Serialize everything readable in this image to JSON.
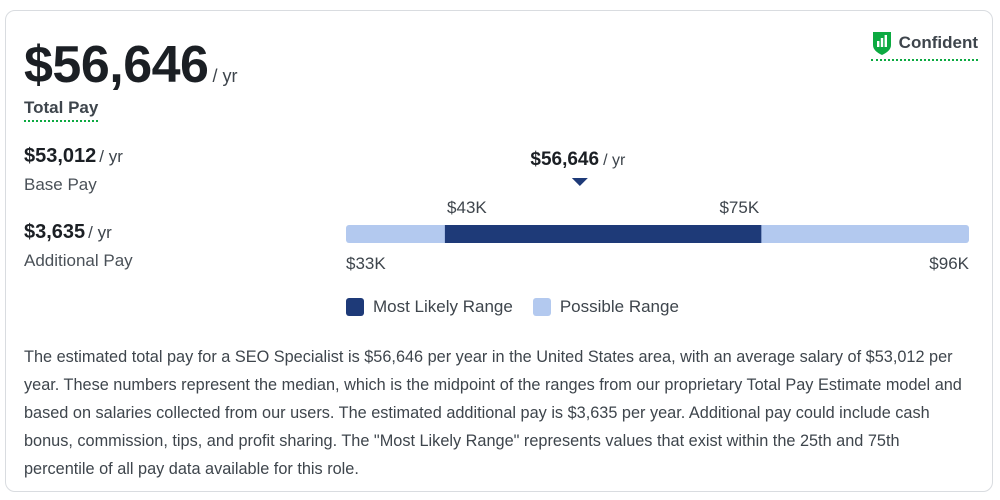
{
  "summary": {
    "total_pay": "$56,646",
    "total_unit": "/ yr",
    "total_label": "Total Pay",
    "confidence_label": "Confident"
  },
  "breakdown": [
    {
      "amount": "$53,012",
      "unit": "/ yr",
      "label": "Base Pay"
    },
    {
      "amount": "$3,635",
      "unit": "/ yr",
      "label": "Additional Pay"
    }
  ],
  "chart_data": {
    "type": "range",
    "marker": {
      "value": 56646,
      "label": "$56,646",
      "unit": "/ yr"
    },
    "possible_range": {
      "min": 33000,
      "max": 96000,
      "min_label": "$33K",
      "max_label": "$96K"
    },
    "likely_range": {
      "min": 43000,
      "max": 75000,
      "min_label": "$43K",
      "max_label": "$75K"
    },
    "legend": [
      {
        "name": "Most Likely Range",
        "color": "#1e3a78"
      },
      {
        "name": "Possible Range",
        "color": "#b3c9ef"
      }
    ],
    "legend_placement": "bottom"
  },
  "colors": {
    "likely": "#1e3a78",
    "possible": "#b3c9ef",
    "accent_green": "#0caa41"
  },
  "icons": {
    "confidence": "bar-chart-shield-icon",
    "marker": "triangle-down-icon"
  },
  "description": "The estimated total pay for a SEO Specialist is $56,646 per year in the United States area, with an average salary of $53,012 per year. These numbers represent the median, which is the midpoint of the ranges from our proprietary Total Pay Estimate model and based on salaries collected from our users. The estimated additional pay is $3,635 per year. Additional pay could include cash bonus, commission, tips, and profit sharing. The \"Most Likely Range\" represents values that exist within the 25th and 75th percentile of all pay data available for this role."
}
